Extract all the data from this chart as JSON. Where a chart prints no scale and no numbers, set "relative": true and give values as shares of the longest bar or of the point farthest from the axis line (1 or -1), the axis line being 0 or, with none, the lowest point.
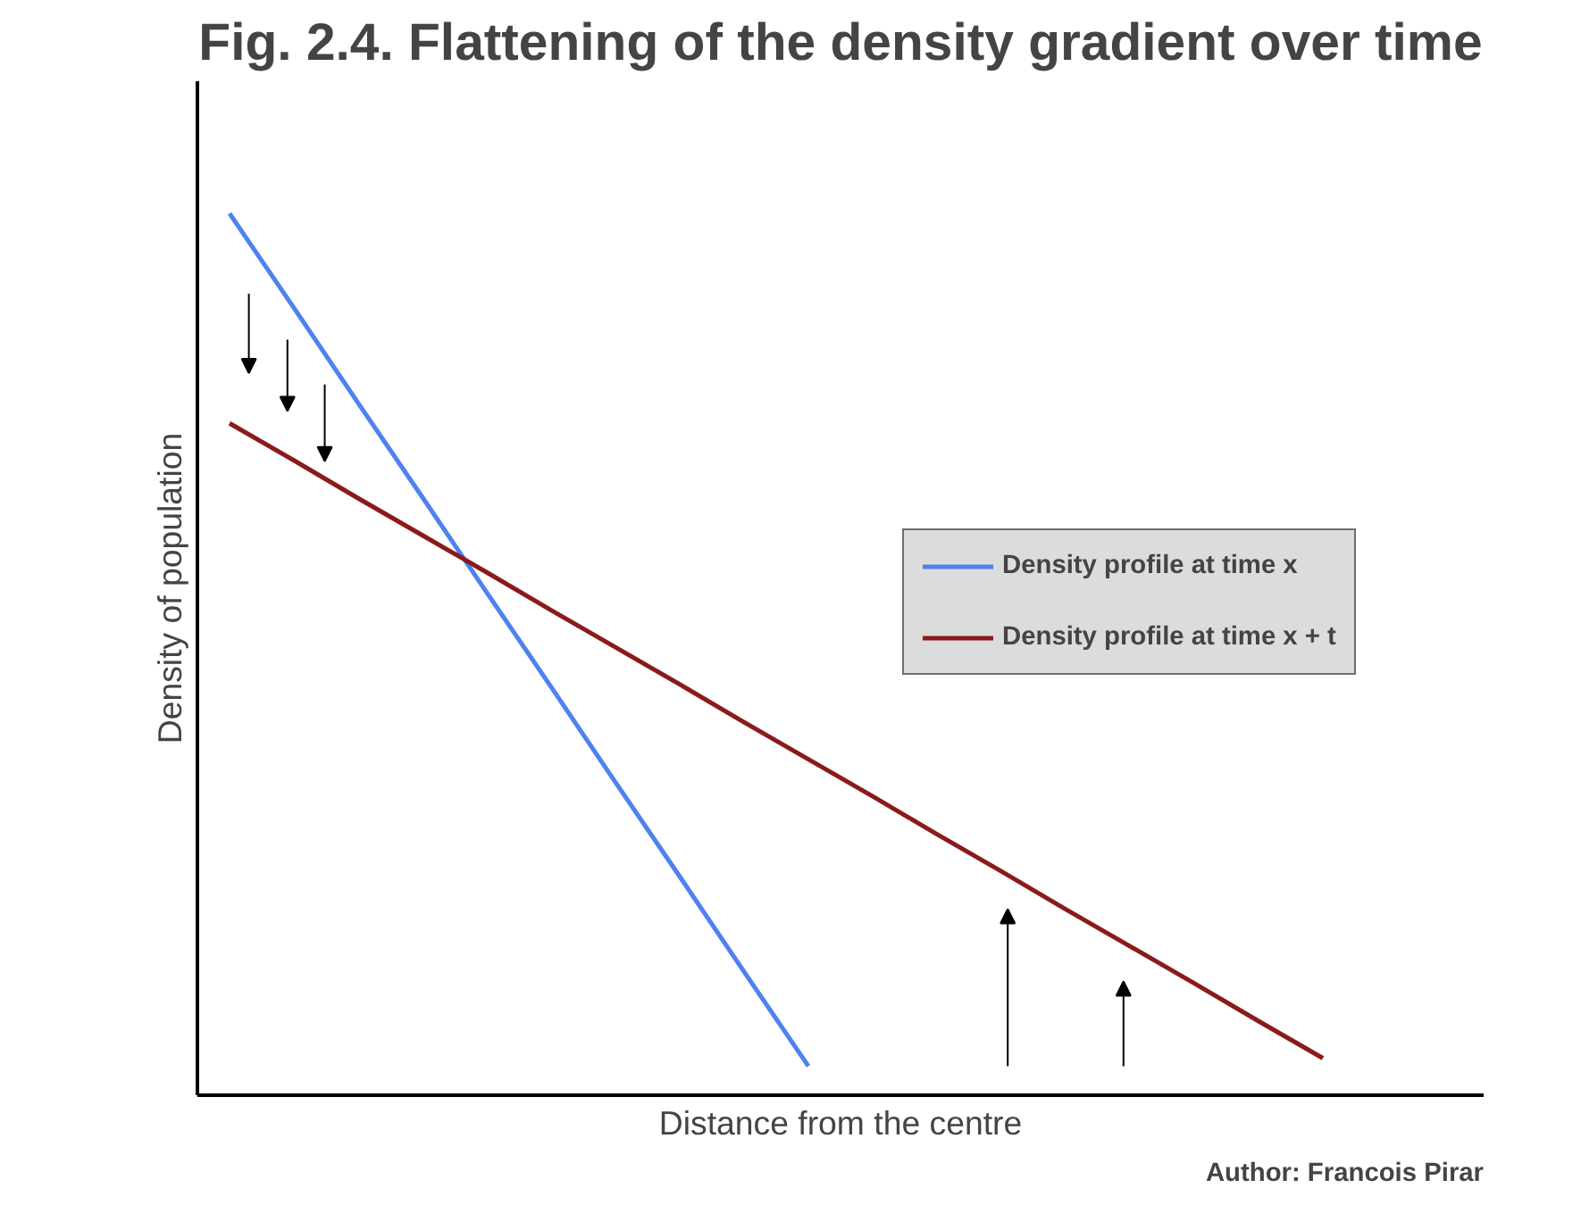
{
  "chart_data": {
    "type": "line",
    "title": "Fig. 2.4. Flattening of the density gradient over time",
    "xlabel": "Distance from the centre",
    "ylabel": "Density of population",
    "relative": true,
    "legend": "right",
    "annotations": [
      "Author: Francois Pirar"
    ],
    "categories": [
      null,
      null,
      null,
      null,
      null,
      null,
      null,
      null,
      null,
      null,
      null,
      null,
      null,
      null,
      null,
      null,
      null,
      null
    ],
    "series": [
      {
        "name": "Density profile at time x",
        "color": "#4f81f0",
        "values": [
          1,
          0.893,
          0.785,
          0.678,
          0.57,
          0.463,
          0.355,
          0.248,
          0.14,
          0.033,
          null,
          null,
          null,
          null,
          null,
          null,
          null,
          null
        ]
      },
      {
        "name": "Density profile at time x + t",
        "color": "#8b1a1a",
        "values": [
          0.762,
          0.72,
          0.677,
          0.635,
          0.593,
          0.55,
          0.508,
          0.466,
          0.423,
          0.381,
          0.339,
          0.296,
          0.254,
          0.211,
          0.169,
          0.127,
          0.084,
          0.042
        ]
      }
    ]
  }
}
